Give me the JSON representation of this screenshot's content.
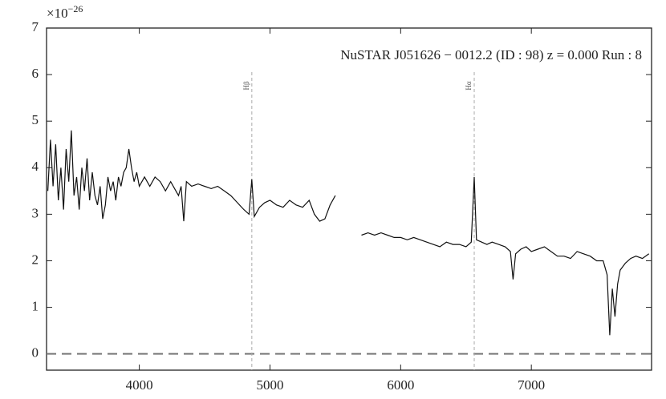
{
  "chart_data": {
    "type": "line",
    "title": "NuSTAR J051626 − 0012.2 (ID : 98)   z = 0.000   Run : 8",
    "y_multiplier": {
      "base": "×10",
      "exponent": "−26"
    },
    "x": [
      3300,
      3320,
      3340,
      3360,
      3380,
      3400,
      3420,
      3440,
      3460,
      3480,
      3500,
      3520,
      3540,
      3560,
      3580,
      3600,
      3620,
      3640,
      3660,
      3680,
      3700,
      3720,
      3740,
      3760,
      3780,
      3800,
      3820,
      3840,
      3860,
      3880,
      3900,
      3920,
      3940,
      3960,
      3980,
      4000,
      4040,
      4080,
      4120,
      4160,
      4200,
      4240,
      4280,
      4300,
      4320,
      4340,
      4360,
      4400,
      4450,
      4500,
      4550,
      4600,
      4650,
      4700,
      4750,
      4800,
      4840,
      4861,
      4880,
      4920,
      4960,
      5000,
      5050,
      5100,
      5150,
      5200,
      5250,
      5300,
      5340,
      5380,
      5420,
      5460,
      5500,
      5600,
      5700,
      5750,
      5800,
      5850,
      5900,
      5950,
      6000,
      6050,
      6100,
      6150,
      6200,
      6250,
      6300,
      6350,
      6400,
      6450,
      6500,
      6540,
      6563,
      6580,
      6620,
      6660,
      6700,
      6750,
      6800,
      6840,
      6860,
      6880,
      6920,
      6960,
      7000,
      7050,
      7100,
      7150,
      7200,
      7250,
      7300,
      7350,
      7400,
      7450,
      7500,
      7550,
      7580,
      7600,
      7620,
      7640,
      7660,
      7680,
      7720,
      7760,
      7800,
      7850,
      7900
    ],
    "values": [
      3.5,
      4.6,
      3.6,
      4.5,
      3.3,
      4.0,
      3.1,
      4.4,
      3.7,
      4.8,
      3.4,
      3.8,
      3.1,
      4.0,
      3.5,
      4.2,
      3.3,
      3.9,
      3.4,
      3.2,
      3.6,
      2.9,
      3.2,
      3.8,
      3.5,
      3.7,
      3.3,
      3.8,
      3.6,
      3.9,
      4.0,
      4.4,
      4.0,
      3.7,
      3.9,
      3.6,
      3.8,
      3.6,
      3.8,
      3.7,
      3.5,
      3.7,
      3.5,
      3.4,
      3.6,
      2.85,
      3.7,
      3.6,
      3.65,
      3.6,
      3.55,
      3.6,
      3.5,
      3.4,
      3.25,
      3.1,
      3.0,
      3.75,
      2.95,
      3.15,
      3.25,
      3.3,
      3.2,
      3.15,
      3.3,
      3.2,
      3.15,
      3.3,
      3.0,
      2.85,
      2.9,
      3.2,
      3.4,
      null,
      2.55,
      2.6,
      2.55,
      2.6,
      2.55,
      2.5,
      2.5,
      2.45,
      2.5,
      2.45,
      2.4,
      2.35,
      2.3,
      2.4,
      2.35,
      2.35,
      2.3,
      2.4,
      3.8,
      2.45,
      2.4,
      2.35,
      2.4,
      2.35,
      2.3,
      2.2,
      1.6,
      2.15,
      2.25,
      2.3,
      2.2,
      2.25,
      2.3,
      2.2,
      2.1,
      2.1,
      2.05,
      2.2,
      2.15,
      2.1,
      2.0,
      2.0,
      1.7,
      0.4,
      1.4,
      0.8,
      1.5,
      1.8,
      1.95,
      2.05,
      2.1,
      2.05,
      2.15
    ],
    "color": "#111111",
    "xlim": [
      3290,
      7920
    ],
    "ylim": [
      -0.35,
      7
    ],
    "xticks": [
      4000,
      5000,
      6000,
      7000
    ],
    "yticks": [
      0,
      1,
      2,
      3,
      4,
      5,
      6,
      7
    ],
    "vlines": [
      {
        "x": 4861,
        "label": "Hβ"
      },
      {
        "x": 6563,
        "label": "Hα"
      }
    ],
    "hlines": [
      0
    ]
  }
}
